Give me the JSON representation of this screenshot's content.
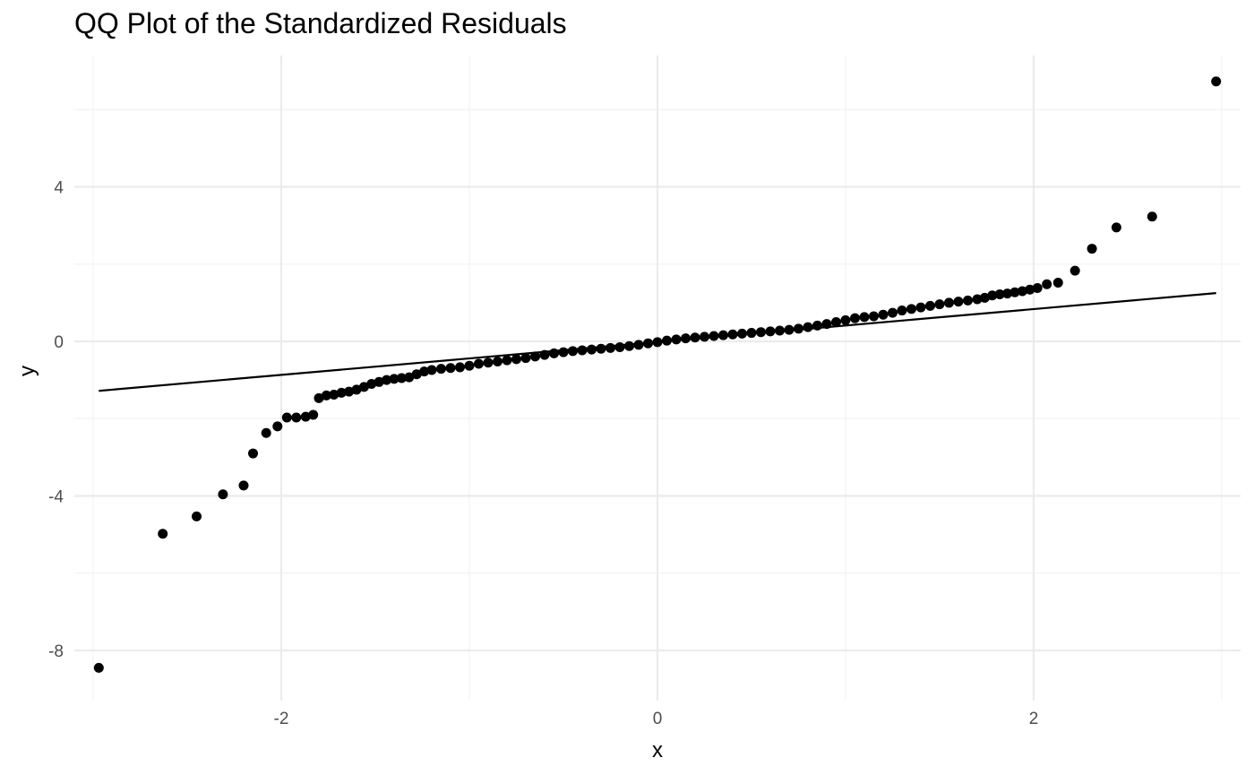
{
  "chart_data": {
    "type": "scatter",
    "title": "QQ Plot of the Standardized Residuals",
    "xlabel": "x",
    "ylabel": "y",
    "xlim": [
      -3.1,
      3.1
    ],
    "ylim": [
      -9.3,
      7.4
    ],
    "x_ticks": [
      -2,
      0,
      2
    ],
    "y_ticks": [
      -8,
      -4,
      0,
      4
    ],
    "grid": true,
    "legend": "none",
    "colors": {
      "points": "#000000",
      "line": "#000000",
      "grid_major": "#ebebeb",
      "grid_minor": "#f2f2f2",
      "tick_text": "#4d4d4d"
    },
    "reference_line": {
      "x": [
        -2.97,
        2.97
      ],
      "y": [
        -1.28,
        1.25
      ]
    },
    "points": [
      [
        -2.97,
        -8.45
      ],
      [
        -2.63,
        -4.98
      ],
      [
        -2.45,
        -4.53
      ],
      [
        -2.31,
        -3.96
      ],
      [
        -2.2,
        -3.73
      ],
      [
        -2.15,
        -2.9
      ],
      [
        -2.08,
        -2.37
      ],
      [
        -2.02,
        -2.2
      ],
      [
        -1.97,
        -1.97
      ],
      [
        -1.92,
        -1.97
      ],
      [
        -1.87,
        -1.95
      ],
      [
        -1.83,
        -1.9
      ],
      [
        -1.8,
        -1.47
      ],
      [
        -1.76,
        -1.4
      ],
      [
        -1.72,
        -1.38
      ],
      [
        -1.68,
        -1.33
      ],
      [
        -1.64,
        -1.3
      ],
      [
        -1.6,
        -1.25
      ],
      [
        -1.56,
        -1.18
      ],
      [
        -1.52,
        -1.1
      ],
      [
        -1.48,
        -1.05
      ],
      [
        -1.44,
        -1.0
      ],
      [
        -1.4,
        -0.97
      ],
      [
        -1.36,
        -0.95
      ],
      [
        -1.32,
        -0.93
      ],
      [
        -1.28,
        -0.85
      ],
      [
        -1.24,
        -0.78
      ],
      [
        -1.2,
        -0.74
      ],
      [
        -1.15,
        -0.71
      ],
      [
        -1.1,
        -0.69
      ],
      [
        -1.05,
        -0.67
      ],
      [
        -1.0,
        -0.63
      ],
      [
        -0.95,
        -0.58
      ],
      [
        -0.9,
        -0.55
      ],
      [
        -0.85,
        -0.52
      ],
      [
        -0.8,
        -0.49
      ],
      [
        -0.75,
        -0.46
      ],
      [
        -0.7,
        -0.43
      ],
      [
        -0.65,
        -0.39
      ],
      [
        -0.6,
        -0.35
      ],
      [
        -0.55,
        -0.31
      ],
      [
        -0.5,
        -0.28
      ],
      [
        -0.45,
        -0.25
      ],
      [
        -0.4,
        -0.23
      ],
      [
        -0.35,
        -0.21
      ],
      [
        -0.3,
        -0.19
      ],
      [
        -0.25,
        -0.17
      ],
      [
        -0.2,
        -0.15
      ],
      [
        -0.15,
        -0.12
      ],
      [
        -0.1,
        -0.09
      ],
      [
        -0.05,
        -0.05
      ],
      [
        0.0,
        -0.02
      ],
      [
        0.05,
        0.02
      ],
      [
        0.1,
        0.05
      ],
      [
        0.15,
        0.08
      ],
      [
        0.2,
        0.1
      ],
      [
        0.25,
        0.12
      ],
      [
        0.3,
        0.14
      ],
      [
        0.35,
        0.16
      ],
      [
        0.4,
        0.18
      ],
      [
        0.45,
        0.2
      ],
      [
        0.5,
        0.22
      ],
      [
        0.55,
        0.24
      ],
      [
        0.6,
        0.26
      ],
      [
        0.65,
        0.28
      ],
      [
        0.7,
        0.3
      ],
      [
        0.75,
        0.33
      ],
      [
        0.8,
        0.37
      ],
      [
        0.85,
        0.41
      ],
      [
        0.9,
        0.45
      ],
      [
        0.95,
        0.5
      ],
      [
        1.0,
        0.55
      ],
      [
        1.05,
        0.6
      ],
      [
        1.1,
        0.63
      ],
      [
        1.15,
        0.65
      ],
      [
        1.2,
        0.69
      ],
      [
        1.25,
        0.74
      ],
      [
        1.3,
        0.8
      ],
      [
        1.35,
        0.84
      ],
      [
        1.4,
        0.88
      ],
      [
        1.45,
        0.92
      ],
      [
        1.5,
        0.96
      ],
      [
        1.55,
        1.0
      ],
      [
        1.6,
        1.03
      ],
      [
        1.65,
        1.06
      ],
      [
        1.7,
        1.09
      ],
      [
        1.74,
        1.13
      ],
      [
        1.78,
        1.19
      ],
      [
        1.82,
        1.22
      ],
      [
        1.86,
        1.24
      ],
      [
        1.9,
        1.27
      ],
      [
        1.94,
        1.3
      ],
      [
        1.98,
        1.34
      ],
      [
        2.02,
        1.38
      ],
      [
        2.07,
        1.48
      ],
      [
        2.13,
        1.52
      ],
      [
        2.22,
        1.83
      ],
      [
        2.31,
        2.4
      ],
      [
        2.44,
        2.95
      ],
      [
        2.63,
        3.23
      ],
      [
        2.97,
        6.73
      ]
    ]
  }
}
